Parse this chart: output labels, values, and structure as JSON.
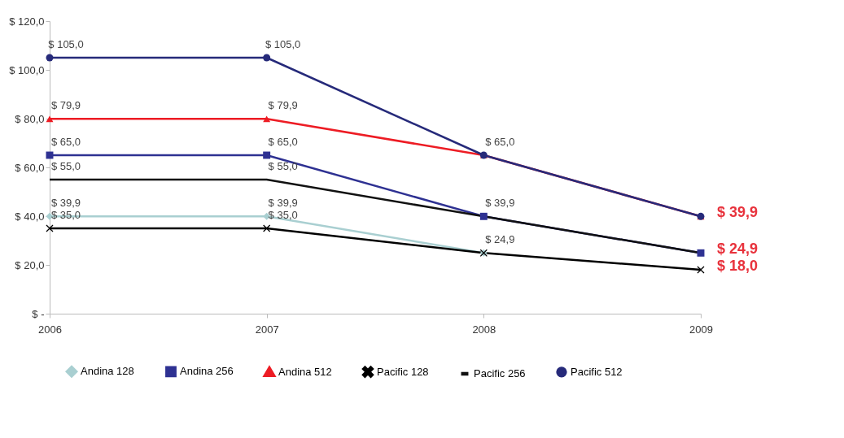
{
  "chart_data": {
    "type": "line",
    "categories": [
      "2006",
      "2007",
      "2008",
      "2009"
    ],
    "ylim": [
      0,
      120
    ],
    "yticks": [
      {
        "value": 0,
        "label": "$ -"
      },
      {
        "value": 20,
        "label": "$ 20,0"
      },
      {
        "value": 40,
        "label": "$ 40,0"
      },
      {
        "value": 60,
        "label": "$ 60,0"
      },
      {
        "value": 80,
        "label": "$ 80,0"
      },
      {
        "value": 100,
        "label": "$ 100,0"
      },
      {
        "value": 120,
        "label": "$ 120,0"
      }
    ],
    "legend": "bottom",
    "grid": false,
    "series": [
      {
        "name": "Andina 128",
        "color": "#a9cfd1",
        "marker": "diamond",
        "values": [
          39.9,
          39.9,
          24.9,
          null
        ],
        "value_labels": [
          "$ 39,9",
          "$ 39,9",
          null,
          null
        ]
      },
      {
        "name": "Andina 256",
        "color": "#2e3192",
        "marker": "square",
        "values": [
          65.0,
          65.0,
          39.9,
          24.9
        ],
        "value_labels": [
          "$ 65,0",
          "$ 65,0",
          "$ 39,9",
          null
        ]
      },
      {
        "name": "Andina 512",
        "color": "#ed1c24",
        "marker": "triangle",
        "values": [
          79.9,
          79.9,
          65.0,
          39.9
        ],
        "value_labels": [
          "$ 79,9",
          "$ 79,9",
          null,
          null
        ]
      },
      {
        "name": "Pacific 128",
        "color": "#000000",
        "marker": "cross",
        "values": [
          35.0,
          35.0,
          24.9,
          18.0
        ],
        "value_labels": [
          "$ 35,0",
          "$ 35,0",
          "$ 24,9",
          null
        ]
      },
      {
        "name": "Pacific 256",
        "color": "#111111",
        "marker": "none",
        "values": [
          55.0,
          55.0,
          39.9,
          24.9
        ],
        "value_labels": [
          "$ 55,0",
          "$ 55,0",
          null,
          null
        ]
      },
      {
        "name": "Pacific 512",
        "color": "#262a7a",
        "marker": "circle",
        "values": [
          105.0,
          105.0,
          65.0,
          39.9
        ],
        "value_labels": [
          "$ 105,0",
          "$ 105,0",
          "$ 65,0",
          null
        ]
      }
    ],
    "annotations": [
      {
        "text": "$ 39,9",
        "x": "2009",
        "y": 39.9
      },
      {
        "text": "$ 24,9",
        "x": "2009",
        "y": 24.9
      },
      {
        "text": "$ 18,0",
        "x": "2009",
        "y": 18.0
      }
    ]
  }
}
